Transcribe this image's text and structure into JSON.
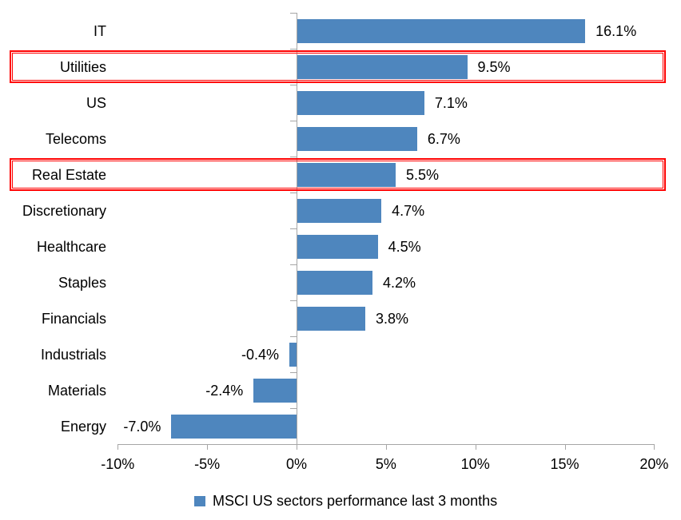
{
  "chart_data": {
    "type": "bar",
    "orientation": "horizontal",
    "title": "",
    "categories": [
      "IT",
      "Utilities",
      "US",
      "Telecoms",
      "Real Estate",
      "Discretionary",
      "Healthcare",
      "Staples",
      "Financials",
      "Industrials",
      "Materials",
      "Energy"
    ],
    "values": [
      16.1,
      9.5,
      7.1,
      6.7,
      5.5,
      4.7,
      4.5,
      4.2,
      3.8,
      -0.4,
      -2.4,
      -7.0
    ],
    "value_labels": [
      "16.1%",
      "9.5%",
      "7.1%",
      "6.7%",
      "5.5%",
      "4.7%",
      "4.5%",
      "4.2%",
      "3.8%",
      "-0.4%",
      "-2.4%",
      "-7.0%"
    ],
    "x_tick_labels": [
      "-10%",
      "-5%",
      "0%",
      "5%",
      "10%",
      "15%",
      "20%"
    ],
    "x_tick_values": [
      -10,
      -5,
      0,
      5,
      10,
      15,
      20
    ],
    "xlim": [
      -10,
      20
    ],
    "grid": "off",
    "legend_entries": [
      "MSCI US sectors performance last 3 months"
    ],
    "legend_position": "bottom-center",
    "highlighted_categories": [
      "Utilities",
      "Real Estate"
    ],
    "colors": {
      "bar": "#4E86BE",
      "highlight_box": "#FF0000",
      "axis": "#A6A6A6",
      "text": "#000000",
      "background": "#FFFFFF"
    }
  }
}
